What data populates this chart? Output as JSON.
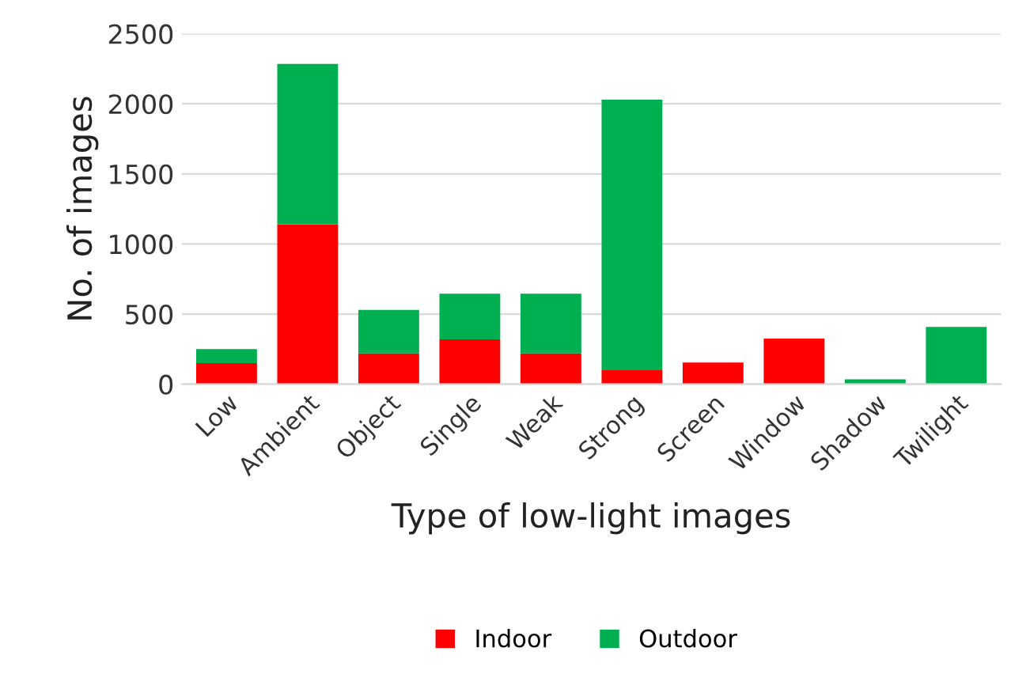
{
  "chart_data": {
    "type": "bar",
    "stacked": true,
    "xlabel": "Type of low-light images",
    "ylabel": "No. of images",
    "categories": [
      "Low",
      "Ambient",
      "Object",
      "Single",
      "Weak",
      "Strong",
      "Screen",
      "Window",
      "Shadow",
      "Twilight"
    ],
    "series": [
      {
        "name": "Indoor",
        "color": "#ff0000",
        "values": [
          150,
          1140,
          220,
          320,
          220,
          100,
          155,
          325,
          0,
          0
        ]
      },
      {
        "name": "Outdoor",
        "color": "#00b050",
        "values": [
          100,
          1145,
          310,
          325,
          425,
          1930,
          0,
          0,
          35,
          408
        ]
      }
    ],
    "ylim": [
      0,
      2500
    ],
    "yticks": [
      0,
      500,
      1000,
      1500,
      2000,
      2500
    ],
    "grid": "y",
    "legend": "bottom"
  }
}
